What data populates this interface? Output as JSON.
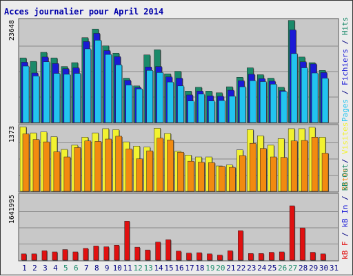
{
  "title": "Acces journalier pour April 2014",
  "colors": {
    "title": "#0000aa",
    "hits": "#1a8a6a",
    "files": "#1a1ad6",
    "pages": "#22c4f0",
    "visits": "#f2f230",
    "sites": "#f28a10",
    "kb_f": "#e01010",
    "kb_in": "#1a1ad6",
    "kb_out": "#1a8a6a",
    "weekend_day": "#1a8a6a",
    "weekday": "#000080",
    "panel_bg": "#c8c8c8",
    "grid": "#888888"
  },
  "chart_data": [
    {
      "type": "bar",
      "panel": "hits",
      "max_label": "23648",
      "ylim": [
        0,
        23648
      ],
      "side_labels": [
        {
          "text": "Pages",
          "color_key": "pages"
        },
        {
          "text": " / ",
          "color_key": "weekday"
        },
        {
          "text": "Fichiers",
          "color_key": "files"
        },
        {
          "text": " / ",
          "color_key": "weekday"
        },
        {
          "text": "Hits",
          "color_key": "hits"
        }
      ],
      "categories": [
        "1",
        "2",
        "3",
        "4",
        "5",
        "6",
        "7",
        "8",
        "9",
        "10",
        "11",
        "12",
        "13",
        "14",
        "15",
        "16",
        "17",
        "18",
        "19",
        "20",
        "21",
        "22",
        "23",
        "24",
        "25",
        "26",
        "27",
        "28",
        "29",
        "30",
        "31"
      ],
      "series": [
        {
          "name": "Hits",
          "color_key": "hits",
          "values": [
            15000,
            14200,
            16300,
            15000,
            13000,
            13900,
            19700,
            21700,
            17800,
            16100,
            10300,
            8500,
            15700,
            16900,
            11300,
            11900,
            7300,
            8200,
            7300,
            6900,
            8300,
            10500,
            12700,
            11100,
            10300,
            8200,
            23700,
            15200,
            13900,
            12100,
            null
          ]
        },
        {
          "name": "Fichiers",
          "color_key": "files",
          "values": [
            14000,
            11500,
            15200,
            13700,
            12500,
            12700,
            18800,
            20700,
            16700,
            15300,
            9800,
            8100,
            12900,
            13000,
            10600,
            10300,
            6400,
            7300,
            6200,
            6100,
            7500,
            9700,
            11200,
            10200,
            9600,
            7400,
            21500,
            14100,
            13600,
            11600,
            null
          ]
        },
        {
          "name": "Pages",
          "color_key": "pages",
          "values": [
            13100,
            10800,
            14100,
            11400,
            11200,
            11400,
            17100,
            19100,
            15800,
            13400,
            8700,
            7800,
            12100,
            11600,
            9400,
            8500,
            5000,
            6600,
            5000,
            5100,
            6100,
            8300,
            9700,
            9500,
            8900,
            7200,
            16000,
            12700,
            11500,
            10300,
            null
          ]
        }
      ]
    },
    {
      "type": "bar",
      "panel": "visits",
      "max_label": "1373",
      "ylim": [
        0,
        1373
      ],
      "side_labels": [
        {
          "text": "Sites",
          "color_key": "sites"
        },
        {
          "text": " / ",
          "color_key": "weekday"
        },
        {
          "text": "Visites",
          "color_key": "visits"
        }
      ],
      "categories": [
        "1",
        "2",
        "3",
        "4",
        "5",
        "6",
        "7",
        "8",
        "9",
        "10",
        "11",
        "12",
        "13",
        "14",
        "15",
        "16",
        "17",
        "18",
        "19",
        "20",
        "21",
        "22",
        "23",
        "24",
        "25",
        "26",
        "27",
        "28",
        "29",
        "30",
        "31"
      ],
      "series": [
        {
          "name": "Visites",
          "color_key": "visits",
          "values": [
            1370,
            1240,
            1260,
            1160,
            890,
            980,
            1150,
            1240,
            1330,
            1310,
            1050,
            960,
            940,
            1340,
            1230,
            850,
            770,
            730,
            730,
            540,
            560,
            880,
            1310,
            1180,
            980,
            1120,
            1330,
            1330,
            1360,
            1150,
            null
          ]
        },
        {
          "name": "Sites",
          "color_key": "sites",
          "values": [
            1220,
            1100,
            1050,
            840,
            730,
            930,
            1070,
            1060,
            1110,
            1170,
            900,
            690,
            860,
            1130,
            1090,
            830,
            640,
            620,
            610,
            530,
            510,
            760,
            1020,
            910,
            730,
            720,
            1070,
            1080,
            1150,
            810,
            null
          ]
        }
      ]
    },
    {
      "type": "bar",
      "panel": "kbytes",
      "max_label": "1641995",
      "ylim": [
        0,
        1641995
      ],
      "side_labels": [
        {
          "text": "kB F",
          "color_key": "kb_f"
        },
        {
          "text": " / ",
          "color_key": "weekday"
        },
        {
          "text": "kB In",
          "color_key": "kb_in"
        },
        {
          "text": " / ",
          "color_key": "weekday"
        },
        {
          "text": "kB Out",
          "color_key": "kb_out"
        }
      ],
      "categories": [
        "1",
        "2",
        "3",
        "4",
        "5",
        "6",
        "7",
        "8",
        "9",
        "10",
        "11",
        "12",
        "13",
        "14",
        "15",
        "16",
        "17",
        "18",
        "19",
        "20",
        "21",
        "22",
        "23",
        "24",
        "25",
        "26",
        "27",
        "28",
        "29",
        "30",
        "31"
      ],
      "series": [
        {
          "name": "kB F",
          "color_key": "kb_f",
          "values": [
            160000,
            160000,
            240000,
            210000,
            270000,
            210000,
            300000,
            360000,
            340000,
            380000,
            990000,
            330000,
            260000,
            460000,
            520000,
            230000,
            180000,
            190000,
            160000,
            130000,
            240000,
            750000,
            170000,
            170000,
            200000,
            210000,
            1380000,
            820000,
            200000,
            160000,
            null
          ]
        }
      ]
    }
  ],
  "x_axis": {
    "days": [
      "1",
      "2",
      "3",
      "4",
      "5",
      "6",
      "7",
      "8",
      "9",
      "10",
      "11",
      "12",
      "13",
      "14",
      "15",
      "16",
      "17",
      "18",
      "19",
      "20",
      "21",
      "22",
      "23",
      "24",
      "25",
      "26",
      "27",
      "28",
      "29",
      "30",
      "31"
    ],
    "weekend_days": [
      "5",
      "6",
      "12",
      "13",
      "19",
      "20",
      "26",
      "27"
    ]
  }
}
